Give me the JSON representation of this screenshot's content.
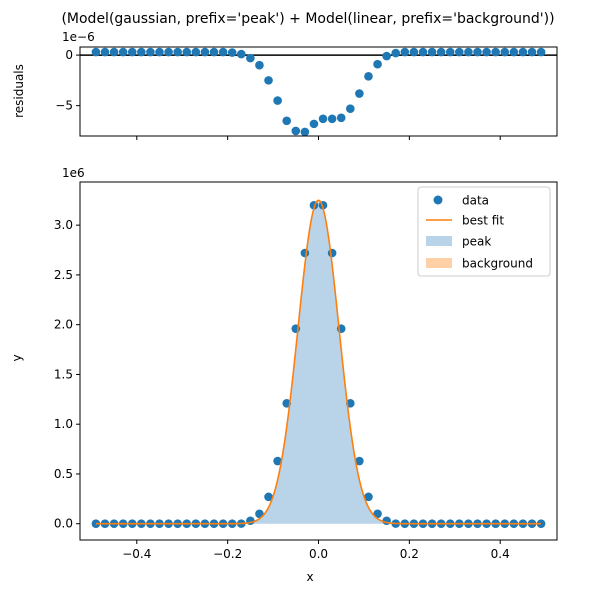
{
  "figure_title": "(Model(gaussian, prefix='peak') + Model(linear, prefix='background'))",
  "colors": {
    "data": "#1f77b4",
    "best_fit": "#ff7f0e",
    "peak_fill": "#b9d4e8",
    "background_fill": "#ffd0a5",
    "zero_line": "#000000"
  },
  "chart_data": [
    {
      "type": "scatter",
      "title": "",
      "xlabel": "",
      "ylabel": "residuals",
      "offset_text": "1e−6",
      "xlim": [
        -0.525,
        0.525
      ],
      "ylim": [
        -8.0,
        0.8
      ],
      "x_ticks": [
        -0.4,
        -0.2,
        0.0,
        0.2,
        0.4
      ],
      "x_tick_labels_visible": false,
      "y_ticks": [
        0,
        -5
      ],
      "y_tick_labels": [
        "0",
        "−5"
      ],
      "zero_line": true,
      "grid": false,
      "series": [
        {
          "name": "residuals",
          "x": [
            -0.49,
            -0.47,
            -0.45,
            -0.43,
            -0.41,
            -0.39,
            -0.37,
            -0.35,
            -0.33,
            -0.31,
            -0.29,
            -0.27,
            -0.25,
            -0.23,
            -0.21,
            -0.19,
            -0.17,
            -0.15,
            -0.13,
            -0.11,
            -0.09,
            -0.07,
            -0.05,
            -0.03,
            -0.01,
            0.01,
            0.03,
            0.05,
            0.07,
            0.09,
            0.11,
            0.13,
            0.15,
            0.17,
            0.19,
            0.21,
            0.23,
            0.25,
            0.27,
            0.29,
            0.31,
            0.33,
            0.35,
            0.37,
            0.39,
            0.41,
            0.43,
            0.45,
            0.47,
            0.49
          ],
          "values": [
            0.3,
            0.3,
            0.3,
            0.3,
            0.3,
            0.3,
            0.3,
            0.3,
            0.3,
            0.3,
            0.3,
            0.3,
            0.3,
            0.3,
            0.3,
            0.25,
            0.1,
            -0.3,
            -1.0,
            -2.5,
            -4.5,
            -6.5,
            -7.5,
            -7.6,
            -6.8,
            -6.3,
            -6.3,
            -6.2,
            -5.3,
            -3.8,
            -2.1,
            -0.9,
            -0.1,
            0.2,
            0.3,
            0.3,
            0.3,
            0.3,
            0.3,
            0.3,
            0.3,
            0.3,
            0.3,
            0.3,
            0.3,
            0.3,
            0.3,
            0.3,
            0.3,
            0.3
          ]
        }
      ]
    },
    {
      "type": "scatter",
      "title": "",
      "xlabel": "x",
      "ylabel": "y",
      "offset_text": "1e6",
      "xlim": [
        -0.525,
        0.525
      ],
      "ylim": [
        -0.1635,
        3.4335
      ],
      "x_ticks": [
        -0.4,
        -0.2,
        0.0,
        0.2,
        0.4
      ],
      "x_tick_labels": [
        "−0.4",
        "−0.2",
        "0.0",
        "0.2",
        "0.4"
      ],
      "y_ticks": [
        0.0,
        0.5,
        1.0,
        1.5,
        2.0,
        2.5,
        3.0
      ],
      "y_tick_labels": [
        "0.0",
        "0.5",
        "1.0",
        "1.5",
        "2.0",
        "2.5",
        "3.0"
      ],
      "grid": false,
      "legend_position": "top-right",
      "legend": [
        "data",
        "best fit",
        "peak",
        "background"
      ],
      "data_points": {
        "name": "data",
        "x": [
          -0.49,
          -0.47,
          -0.45,
          -0.43,
          -0.41,
          -0.39,
          -0.37,
          -0.35,
          -0.33,
          -0.31,
          -0.29,
          -0.27,
          -0.25,
          -0.23,
          -0.21,
          -0.19,
          -0.17,
          -0.15,
          -0.13,
          -0.11,
          -0.09,
          -0.07,
          -0.05,
          -0.03,
          -0.01,
          0.01,
          0.03,
          0.05,
          0.07,
          0.09,
          0.11,
          0.13,
          0.15,
          0.17,
          0.19,
          0.21,
          0.23,
          0.25,
          0.27,
          0.29,
          0.31,
          0.33,
          0.35,
          0.37,
          0.39,
          0.41,
          0.43,
          0.45,
          0.47,
          0.49
        ],
        "values": [
          0,
          0,
          0,
          0,
          0,
          0,
          0,
          0,
          0,
          0,
          0,
          0,
          0,
          0,
          0,
          0,
          0.001,
          0.03,
          0.1,
          0.27,
          0.63,
          1.21,
          1.96,
          2.72,
          3.2,
          3.2,
          2.72,
          1.96,
          1.21,
          0.63,
          0.27,
          0.1,
          0.03,
          0.001,
          0,
          0,
          0,
          0,
          0,
          0,
          0,
          0,
          0,
          0,
          0,
          0,
          0,
          0,
          0,
          0
        ]
      },
      "best_fit": {
        "name": "best fit",
        "amplitude": 3.25,
        "center": 0.0,
        "sigma": 0.045,
        "background": 0.0
      },
      "peak_fill": {
        "name": "peak"
      },
      "background_fill": {
        "name": "background",
        "value": 0.0
      }
    }
  ]
}
